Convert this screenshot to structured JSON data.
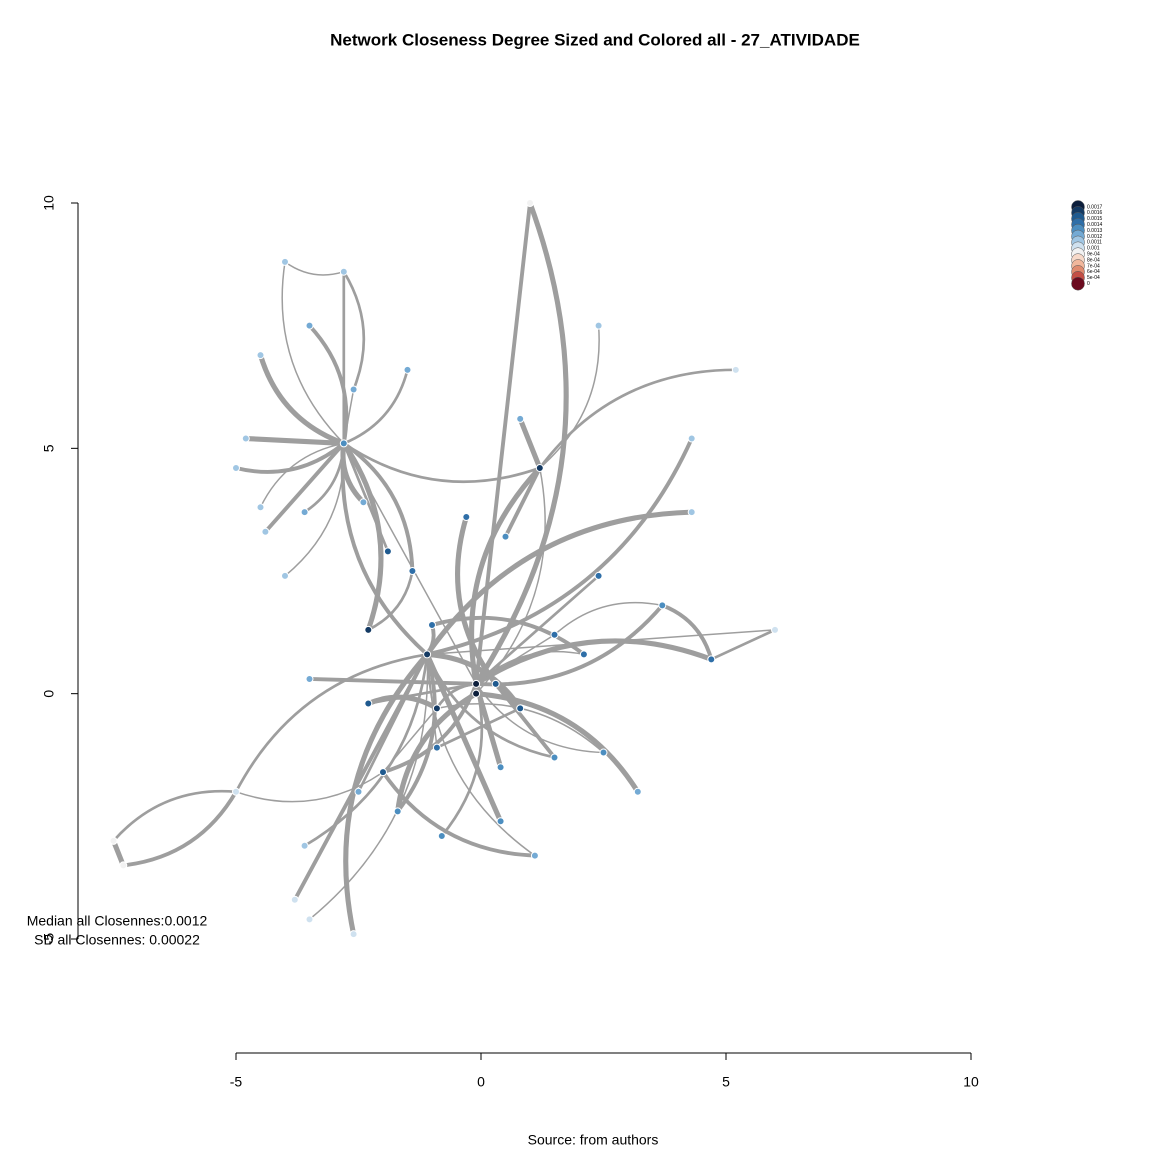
{
  "chart_data": {
    "type": "network",
    "title": "Network Closeness Degree Sized and Colored all - 27_ATIVIDADE",
    "annotations": [
      "Median all Closennes:0.0012",
      "SD all Closennes: 0.00022"
    ],
    "caption": "Source: from authors",
    "xlim": [
      -5,
      10
    ],
    "xticks": [
      -5,
      0,
      5,
      10
    ],
    "ylim": [
      -5,
      10
    ],
    "yticks": [
      -5,
      0,
      5,
      10
    ],
    "legend_position": "topright",
    "legend": [
      {
        "value": 0.0017,
        "label": "0.0017",
        "color": "#0d1f3c"
      },
      {
        "value": 0.0016,
        "label": "0.0016",
        "color": "#143a63"
      },
      {
        "value": 0.0015,
        "label": "0.0015",
        "color": "#1f5a8f"
      },
      {
        "value": 0.0014,
        "label": "0.0014",
        "color": "#2f6fa8"
      },
      {
        "value": 0.0013,
        "label": "0.0013",
        "color": "#4c8ec0"
      },
      {
        "value": 0.0012,
        "label": "0.0012",
        "color": "#74aad4"
      },
      {
        "value": 0.0011,
        "label": "0.0011",
        "color": "#a0c6e3"
      },
      {
        "value": 0.001,
        "label": "0.001",
        "color": "#cfe1ef"
      },
      {
        "value": 0.0009,
        "label": "9e-04",
        "color": "#f2f2f2"
      },
      {
        "value": 0.0008,
        "label": "8e-04",
        "color": "#f7d9c9"
      },
      {
        "value": 0.0007,
        "label": "7e-04",
        "color": "#f1b79c"
      },
      {
        "value": 0.0006,
        "label": "6e-04",
        "color": "#e08a6e"
      },
      {
        "value": 0.0005,
        "label": "5e-04",
        "color": "#c44e45"
      },
      {
        "value": 0,
        "label": "0",
        "color": "#6b0a1f"
      }
    ],
    "nodes": [
      {
        "x": -4,
        "y": 8.8,
        "closeness": 0.0011
      },
      {
        "x": -2.8,
        "y": 8.6,
        "closeness": 0.0011
      },
      {
        "x": -3.5,
        "y": 7.5,
        "closeness": 0.0012
      },
      {
        "x": -4.5,
        "y": 6.9,
        "closeness": 0.0011
      },
      {
        "x": -2.6,
        "y": 6.2,
        "closeness": 0.0012
      },
      {
        "x": -1.5,
        "y": 6.6,
        "closeness": 0.0012
      },
      {
        "x": -5,
        "y": 4.6,
        "closeness": 0.0011
      },
      {
        "x": -4.8,
        "y": 5.2,
        "closeness": 0.0011
      },
      {
        "x": -4.5,
        "y": 3.8,
        "closeness": 0.0011
      },
      {
        "x": -3.6,
        "y": 3.7,
        "closeness": 0.0012
      },
      {
        "x": -4.4,
        "y": 3.3,
        "closeness": 0.0011
      },
      {
        "x": -2.8,
        "y": 5.1,
        "closeness": 0.0013
      },
      {
        "x": -2.4,
        "y": 3.9,
        "closeness": 0.0012
      },
      {
        "x": -4,
        "y": 2.4,
        "closeness": 0.0011
      },
      {
        "x": -1.9,
        "y": 2.9,
        "closeness": 0.0015
      },
      {
        "x": 1.2,
        "y": 4.6,
        "closeness": 0.0016
      },
      {
        "x": 0.8,
        "y": 5.6,
        "closeness": 0.0012
      },
      {
        "x": 2.4,
        "y": 7.5,
        "closeness": 0.0011
      },
      {
        "x": 5.2,
        "y": 6.6,
        "closeness": 0.001
      },
      {
        "x": 4.3,
        "y": 5.2,
        "closeness": 0.0011
      },
      {
        "x": 4.3,
        "y": 3.7,
        "closeness": 0.0011
      },
      {
        "x": 2.4,
        "y": 2.4,
        "closeness": 0.0014
      },
      {
        "x": 3.7,
        "y": 1.8,
        "closeness": 0.0013
      },
      {
        "x": 6,
        "y": 1.3,
        "closeness": 0.001
      },
      {
        "x": 4.7,
        "y": 0.7,
        "closeness": 0.0014
      },
      {
        "x": -0.3,
        "y": 3.6,
        "closeness": 0.0014
      },
      {
        "x": 0.5,
        "y": 3.2,
        "closeness": 0.0013
      },
      {
        "x": 1.5,
        "y": 1.2,
        "closeness": 0.0014
      },
      {
        "x": -1,
        "y": 1.4,
        "closeness": 0.0014
      },
      {
        "x": -2.3,
        "y": 1.3,
        "closeness": 0.0016
      },
      {
        "x": -1.1,
        "y": 0.8,
        "closeness": 0.0016
      },
      {
        "x": -0.1,
        "y": 0.2,
        "closeness": 0.0017
      },
      {
        "x": -0.1,
        "y": 0,
        "closeness": 0.0017
      },
      {
        "x": 0.3,
        "y": 0.2,
        "closeness": 0.0015
      },
      {
        "x": -0.9,
        "y": -0.3,
        "closeness": 0.0016
      },
      {
        "x": 0.8,
        "y": -0.3,
        "closeness": 0.0015
      },
      {
        "x": -2,
        "y": -1.6,
        "closeness": 0.0015
      },
      {
        "x": -0.9,
        "y": -1.1,
        "closeness": 0.0014
      },
      {
        "x": 0.4,
        "y": -1.5,
        "closeness": 0.0013
      },
      {
        "x": 1.5,
        "y": -1.3,
        "closeness": 0.0013
      },
      {
        "x": 2.5,
        "y": -1.2,
        "closeness": 0.0013
      },
      {
        "x": -1.7,
        "y": -2.4,
        "closeness": 0.0013
      },
      {
        "x": -0.8,
        "y": -2.9,
        "closeness": 0.0013
      },
      {
        "x": 0.4,
        "y": -2.6,
        "closeness": 0.0013
      },
      {
        "x": 1.1,
        "y": -3.3,
        "closeness": 0.0012
      },
      {
        "x": -5,
        "y": -2,
        "closeness": 0.001
      },
      {
        "x": -7.5,
        "y": -3,
        "closeness": 0.0009
      },
      {
        "x": -7.3,
        "y": -3.5,
        "closeness": 0.0009
      },
      {
        "x": -3.6,
        "y": -3.1,
        "closeness": 0.0011
      },
      {
        "x": -3.8,
        "y": -4.2,
        "closeness": 0.001
      },
      {
        "x": -2.6,
        "y": -4.9,
        "closeness": 0.001
      },
      {
        "x": -3.5,
        "y": -4.6,
        "closeness": 0.001
      },
      {
        "x": -3.5,
        "y": 0.3,
        "closeness": 0.0012
      },
      {
        "x": 1,
        "y": 10,
        "closeness": 0.0009
      },
      {
        "x": -2.5,
        "y": -2,
        "closeness": 0.0012
      },
      {
        "x": 3.2,
        "y": -2,
        "closeness": 0.0012
      },
      {
        "x": -1.4,
        "y": 2.5,
        "closeness": 0.0014
      },
      {
        "x": 2.1,
        "y": 0.8,
        "closeness": 0.0014
      },
      {
        "x": -2.3,
        "y": -0.2,
        "closeness": 0.0015
      }
    ],
    "edges": [
      [
        11,
        0
      ],
      [
        11,
        1
      ],
      [
        11,
        2
      ],
      [
        11,
        3
      ],
      [
        11,
        4
      ],
      [
        11,
        5
      ],
      [
        11,
        6
      ],
      [
        11,
        7
      ],
      [
        11,
        8
      ],
      [
        11,
        9
      ],
      [
        11,
        10
      ],
      [
        11,
        12
      ],
      [
        11,
        13
      ],
      [
        11,
        14
      ],
      [
        11,
        30
      ],
      [
        11,
        29
      ],
      [
        11,
        31
      ],
      [
        11,
        15
      ],
      [
        11,
        56
      ],
      [
        15,
        16
      ],
      [
        15,
        17
      ],
      [
        15,
        18
      ],
      [
        15,
        26
      ],
      [
        15,
        31
      ],
      [
        15,
        32
      ],
      [
        31,
        21
      ],
      [
        31,
        22
      ],
      [
        31,
        24
      ],
      [
        31,
        27
      ],
      [
        31,
        34
      ],
      [
        31,
        36
      ],
      [
        31,
        38
      ],
      [
        31,
        40
      ],
      [
        31,
        42
      ],
      [
        31,
        52
      ],
      [
        31,
        53
      ],
      [
        31,
        57
      ],
      [
        31,
        58
      ],
      [
        30,
        28
      ],
      [
        30,
        35
      ],
      [
        30,
        37
      ],
      [
        30,
        39
      ],
      [
        30,
        41
      ],
      [
        30,
        43
      ],
      [
        30,
        44
      ],
      [
        30,
        48
      ],
      [
        30,
        49
      ],
      [
        30,
        50
      ],
      [
        30,
        51
      ],
      [
        30,
        54
      ],
      [
        30,
        19
      ],
      [
        30,
        20
      ],
      [
        30,
        23
      ],
      [
        45,
        46
      ],
      [
        45,
        47
      ],
      [
        46,
        47
      ],
      [
        45,
        36
      ],
      [
        45,
        30
      ],
      [
        53,
        31
      ],
      [
        25,
        33
      ],
      [
        27,
        22
      ],
      [
        23,
        24
      ],
      [
        24,
        22
      ],
      [
        32,
        55
      ],
      [
        34,
        36
      ],
      [
        29,
        56
      ],
      [
        28,
        57
      ],
      [
        33,
        35
      ],
      [
        0,
        1
      ],
      [
        1,
        4
      ],
      [
        33,
        39
      ],
      [
        32,
        41
      ],
      [
        34,
        40
      ],
      [
        35,
        37
      ],
      [
        36,
        44
      ],
      [
        58,
        34
      ]
    ]
  }
}
